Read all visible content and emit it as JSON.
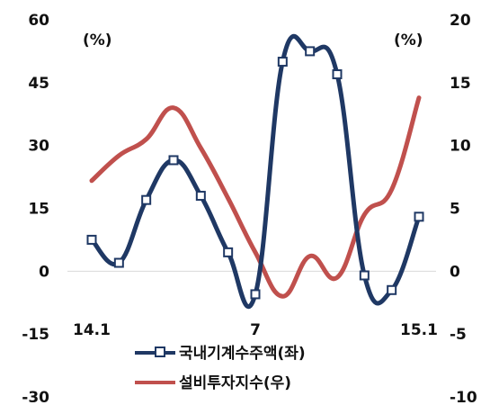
{
  "chart_data": {
    "type": "line",
    "left_axis": {
      "ticks": [
        60,
        45,
        30,
        15,
        0,
        -15,
        -30
      ],
      "ylim": [
        -30,
        60
      ],
      "unit": "(%)"
    },
    "right_axis": {
      "ticks": [
        20,
        15,
        10,
        5,
        0,
        -5,
        -10
      ],
      "ylim": [
        -10,
        20
      ],
      "unit": "(%)"
    },
    "x_ticks": [
      {
        "index": 0,
        "label": "14.1"
      },
      {
        "index": 6,
        "label": "7"
      },
      {
        "index": 12,
        "label": "15.1"
      }
    ],
    "series": [
      {
        "name": "국내기계수주액(좌)",
        "axis": "left",
        "color": "#1f3864",
        "marker": "square",
        "values": [
          7.5,
          2.0,
          17.0,
          26.5,
          18.0,
          4.5,
          -5.5,
          50.0,
          52.5,
          47.0,
          -1.0,
          -4.5,
          13.0
        ]
      },
      {
        "name": "설비투자지수(우)",
        "axis": "right",
        "color": "#c0504d",
        "marker": "none",
        "values": [
          7.2,
          9.2,
          10.5,
          13.0,
          9.8,
          5.8,
          1.5,
          -2.0,
          1.2,
          -0.5,
          4.5,
          6.5,
          13.8
        ]
      }
    ]
  },
  "legend_position": "bottom-center"
}
